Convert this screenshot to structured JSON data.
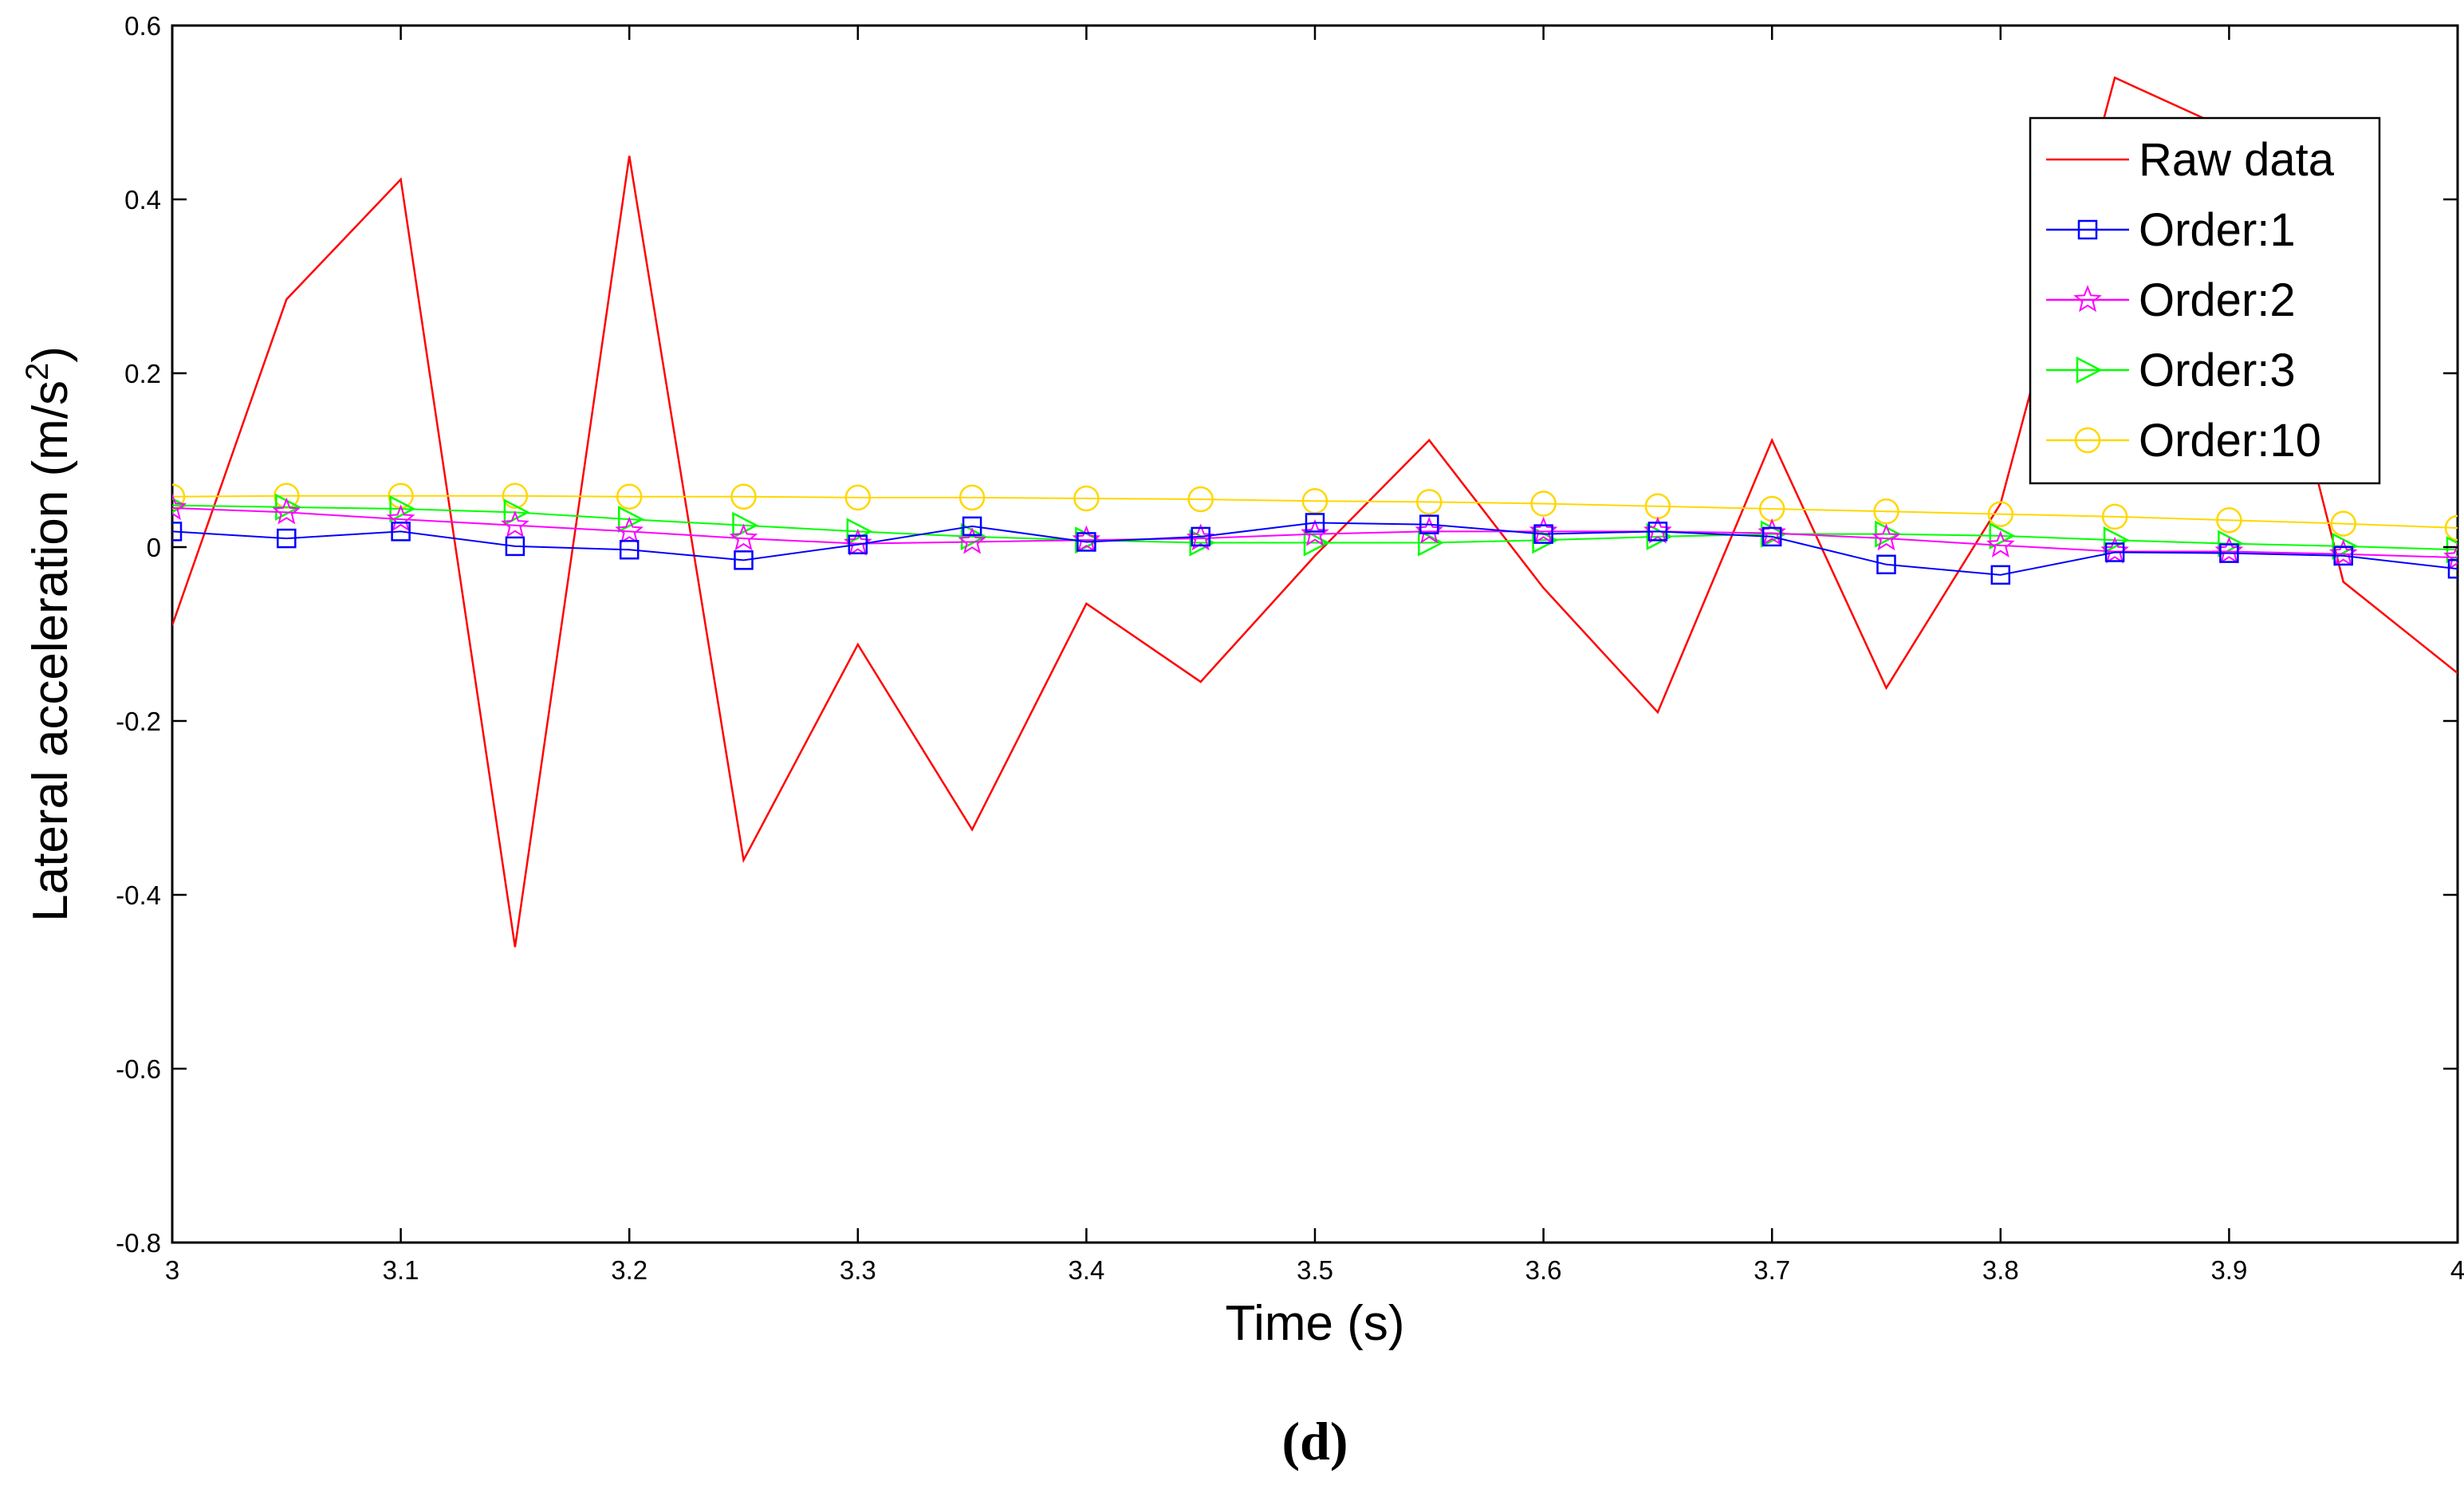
{
  "chart_data": {
    "type": "line",
    "title": "",
    "xlabel": "Time (s)",
    "ylabel_main": "Lateral acceleration (m/s",
    "ylabel_sup": "2",
    "ylabel_close": ")",
    "panel_label": "(d)",
    "xlim": [
      3,
      4
    ],
    "ylim": [
      -0.8,
      0.6
    ],
    "grid": false,
    "legend_position": "top-right",
    "x_ticks": [
      3,
      3.1,
      3.2,
      3.3,
      3.4,
      3.5,
      3.6,
      3.7,
      3.8,
      3.9,
      4
    ],
    "x_tick_labels": [
      "3",
      "3.1",
      "3.2",
      "3.3",
      "3.4",
      "3.5",
      "3.6",
      "3.7",
      "3.8",
      "3.9",
      "4"
    ],
    "y_ticks": [
      -0.8,
      -0.6,
      -0.4,
      -0.2,
      0,
      0.2,
      0.4,
      0.6
    ],
    "y_tick_labels": [
      "-0.8",
      "-0.6",
      "-0.4",
      "-0.2",
      "0",
      "0.2",
      "0.4",
      "0.6"
    ],
    "x": [
      3,
      3.05,
      3.1,
      3.15,
      3.2,
      3.25,
      3.3,
      3.35,
      3.4,
      3.45,
      3.5,
      3.55,
      3.6,
      3.65,
      3.7,
      3.75,
      3.8,
      3.85,
      3.9,
      3.95,
      4
    ],
    "series": [
      {
        "name": "Raw data",
        "color": "#ff0000",
        "marker": "none",
        "values": [
          -0.09,
          0.285,
          0.423,
          -0.46,
          0.45,
          -0.36,
          -0.112,
          -0.325,
          -0.065,
          -0.155,
          -0.01,
          0.123,
          -0.047,
          -0.19,
          0.123,
          -0.162,
          0.05,
          0.54,
          0.48,
          -0.04,
          -0.145
        ]
      },
      {
        "name": "Order:1",
        "color": "#0000ff",
        "marker": "square",
        "values": [
          0.018,
          0.01,
          0.018,
          0.001,
          -0.003,
          -0.015,
          0.003,
          0.024,
          0.006,
          0.012,
          0.028,
          0.026,
          0.015,
          0.018,
          0.012,
          -0.02,
          -0.032,
          -0.006,
          -0.007,
          -0.01,
          -0.025
        ]
      },
      {
        "name": "Order:2",
        "color": "#ff00ff",
        "marker": "star",
        "values": [
          0.045,
          0.04,
          0.032,
          0.025,
          0.018,
          0.01,
          0.004,
          0.006,
          0.008,
          0.01,
          0.015,
          0.018,
          0.018,
          0.018,
          0.016,
          0.01,
          0.002,
          -0.005,
          -0.005,
          -0.008,
          -0.012
        ]
      },
      {
        "name": "Order:3",
        "color": "#00ff00",
        "marker": "triangle-right",
        "values": [
          0.048,
          0.046,
          0.044,
          0.04,
          0.032,
          0.025,
          0.018,
          0.012,
          0.008,
          0.005,
          0.005,
          0.005,
          0.008,
          0.012,
          0.015,
          0.015,
          0.013,
          0.008,
          0.004,
          0.001,
          -0.003
        ]
      },
      {
        "name": "Order:10",
        "color": "#ffd700",
        "marker": "circle",
        "values": [
          0.058,
          0.059,
          0.059,
          0.059,
          0.058,
          0.058,
          0.057,
          0.057,
          0.056,
          0.055,
          0.053,
          0.052,
          0.05,
          0.047,
          0.044,
          0.041,
          0.038,
          0.035,
          0.031,
          0.027,
          0.022
        ]
      }
    ]
  }
}
